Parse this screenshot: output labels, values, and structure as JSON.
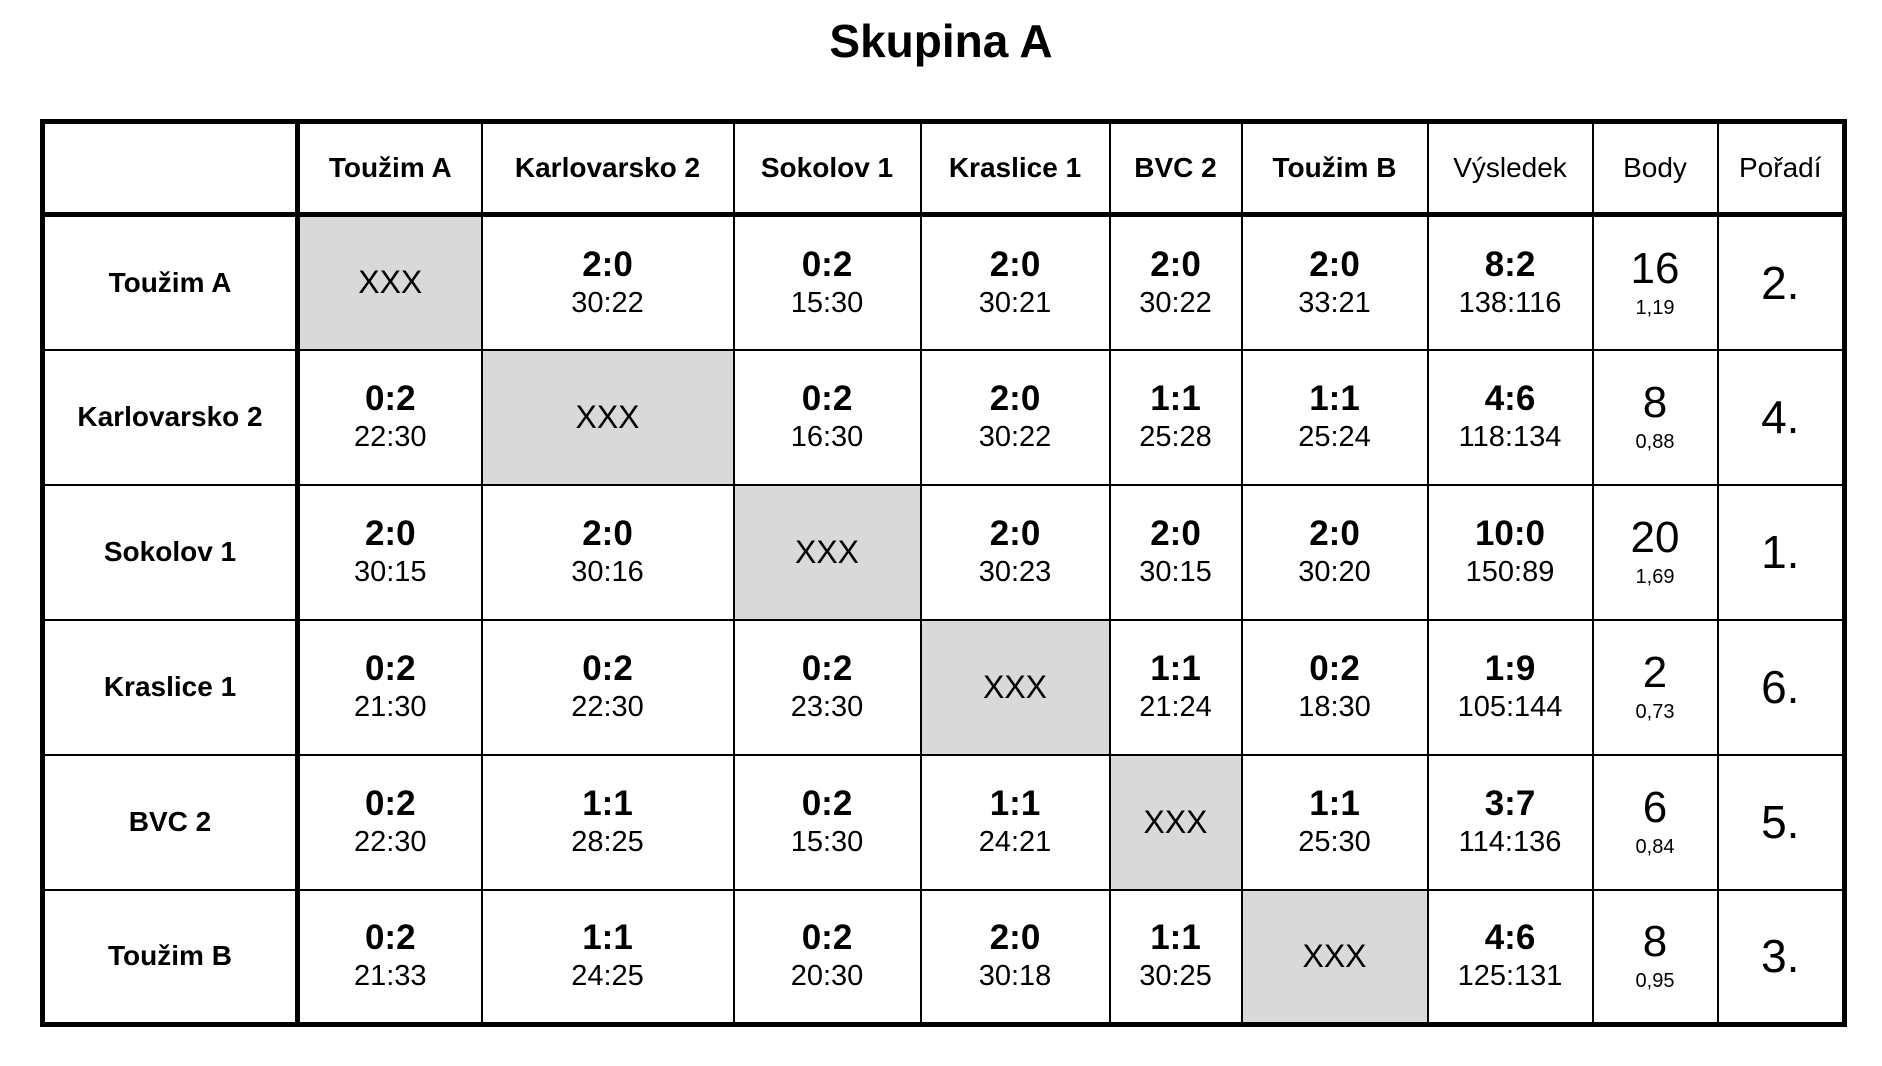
{
  "title": "Skupina A",
  "colors": {
    "background": "#ffffff",
    "border": "#000000",
    "diagonal_cell": "#d9d9d9"
  },
  "table": {
    "diagonal_marker": "XXX",
    "columns": [
      "",
      "Toužim A",
      "Karlovarsko 2",
      "Sokolov 1",
      "Kraslice 1",
      "BVC 2",
      "Toužim B",
      "Výsledek",
      "Body",
      "Pořadí"
    ],
    "rows": [
      {
        "team": "Toužim A",
        "matches": [
          {
            "xxx": true
          },
          {
            "score": "2:0",
            "sets": "30:22"
          },
          {
            "score": "0:2",
            "sets": "15:30"
          },
          {
            "score": "2:0",
            "sets": "30:21"
          },
          {
            "score": "2:0",
            "sets": "30:22"
          },
          {
            "score": "2:0",
            "sets": "33:21"
          }
        ],
        "vysledek": {
          "score": "8:2",
          "sets": "138:116"
        },
        "body": {
          "points": "16",
          "ratio": "1,19"
        },
        "poradi": "2."
      },
      {
        "team": "Karlovarsko 2",
        "matches": [
          {
            "score": "0:2",
            "sets": "22:30"
          },
          {
            "xxx": true
          },
          {
            "score": "0:2",
            "sets": "16:30"
          },
          {
            "score": "2:0",
            "sets": "30:22"
          },
          {
            "score": "1:1",
            "sets": "25:28"
          },
          {
            "score": "1:1",
            "sets": "25:24"
          }
        ],
        "vysledek": {
          "score": "4:6",
          "sets": "118:134"
        },
        "body": {
          "points": "8",
          "ratio": "0,88"
        },
        "poradi": "4."
      },
      {
        "team": "Sokolov 1",
        "matches": [
          {
            "score": "2:0",
            "sets": "30:15"
          },
          {
            "score": "2:0",
            "sets": "30:16"
          },
          {
            "xxx": true
          },
          {
            "score": "2:0",
            "sets": "30:23"
          },
          {
            "score": "2:0",
            "sets": "30:15"
          },
          {
            "score": "2:0",
            "sets": "30:20"
          }
        ],
        "vysledek": {
          "score": "10:0",
          "sets": "150:89"
        },
        "body": {
          "points": "20",
          "ratio": "1,69"
        },
        "poradi": "1."
      },
      {
        "team": "Kraslice 1",
        "matches": [
          {
            "score": "0:2",
            "sets": "21:30"
          },
          {
            "score": "0:2",
            "sets": "22:30"
          },
          {
            "score": "0:2",
            "sets": "23:30"
          },
          {
            "xxx": true
          },
          {
            "score": "1:1",
            "sets": "21:24"
          },
          {
            "score": "0:2",
            "sets": "18:30"
          }
        ],
        "vysledek": {
          "score": "1:9",
          "sets": "105:144"
        },
        "body": {
          "points": "2",
          "ratio": "0,73"
        },
        "poradi": "6."
      },
      {
        "team": "BVC 2",
        "matches": [
          {
            "score": "0:2",
            "sets": "22:30"
          },
          {
            "score": "1:1",
            "sets": "28:25"
          },
          {
            "score": "0:2",
            "sets": "15:30"
          },
          {
            "score": "1:1",
            "sets": "24:21"
          },
          {
            "xxx": true
          },
          {
            "score": "1:1",
            "sets": "25:30"
          }
        ],
        "vysledek": {
          "score": "3:7",
          "sets": "114:136"
        },
        "body": {
          "points": "6",
          "ratio": "0,84"
        },
        "poradi": "5."
      },
      {
        "team": "Toužim B",
        "matches": [
          {
            "score": "0:2",
            "sets": "21:33"
          },
          {
            "score": "1:1",
            "sets": "24:25"
          },
          {
            "score": "0:2",
            "sets": "20:30"
          },
          {
            "score": "2:0",
            "sets": "30:18"
          },
          {
            "score": "1:1",
            "sets": "30:25"
          },
          {
            "xxx": true
          }
        ],
        "vysledek": {
          "score": "4:6",
          "sets": "125:131"
        },
        "body": {
          "points": "8",
          "ratio": "0,95"
        },
        "poradi": "3."
      }
    ]
  }
}
